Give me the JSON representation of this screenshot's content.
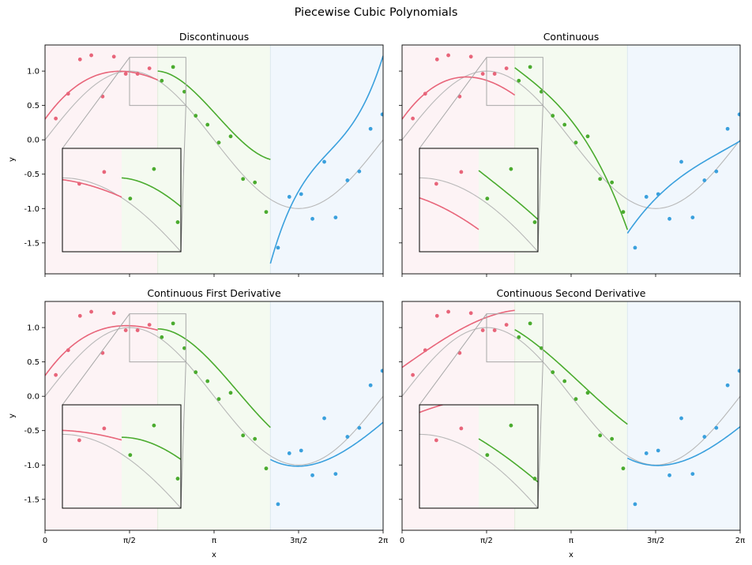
{
  "figure": {
    "title": "Piecewise Cubic Polynomials"
  },
  "colors": {
    "seg1": "#e8657a",
    "seg2": "#4aab2e",
    "seg3": "#3aa0dd",
    "truth": "#b8b8b8",
    "band1": "#fdf3f5",
    "band2": "#f4faf0",
    "band3": "#f1f7fd"
  },
  "axes": {
    "xlabel": "x",
    "ylabel": "y",
    "xlim": [
      0,
      6.2832
    ],
    "ylim": [
      -1.95,
      1.38
    ],
    "xticks": [
      0,
      1.5708,
      3.1416,
      4.7124,
      6.2832
    ],
    "yticks": [
      -1.5,
      -1.0,
      -0.5,
      0.0,
      0.5,
      1.0
    ],
    "knots": [
      2.0944,
      4.1888
    ],
    "inset_region": {
      "x": [
        1.5708,
        2.618
      ],
      "y": [
        0.5,
        1.2
      ]
    }
  },
  "chart_data": [
    {
      "type": "line",
      "title": "Discontinuous",
      "points": {
        "seg1": [
          [
            0.2,
            0.31
          ],
          [
            0.43,
            0.67
          ],
          [
            0.65,
            1.17
          ],
          [
            0.86,
            1.23
          ],
          [
            1.07,
            0.63
          ],
          [
            1.28,
            1.21
          ],
          [
            1.5,
            0.96
          ],
          [
            1.72,
            0.96
          ],
          [
            1.94,
            1.04
          ]
        ],
        "seg2": [
          [
            2.17,
            0.86
          ],
          [
            2.38,
            1.06
          ],
          [
            2.59,
            0.7
          ],
          [
            2.8,
            0.35
          ],
          [
            3.02,
            0.22
          ],
          [
            3.23,
            -0.04
          ],
          [
            3.45,
            0.05
          ],
          [
            3.68,
            -0.57
          ],
          [
            3.9,
            -0.62
          ],
          [
            4.11,
            -1.05
          ]
        ],
        "seg3": [
          [
            4.33,
            -1.57
          ],
          [
            4.54,
            -0.83
          ],
          [
            4.76,
            -0.79
          ],
          [
            4.97,
            -1.15
          ],
          [
            5.19,
            -0.32
          ],
          [
            5.4,
            -1.13
          ],
          [
            5.62,
            -0.59
          ],
          [
            5.84,
            -0.46
          ],
          [
            6.05,
            0.16
          ],
          [
            6.27,
            0.37
          ]
        ]
      },
      "fits": {
        "seg1": [
          0.3,
          1.1,
          -0.5,
          0.05
        ],
        "seg2": [
          1.0,
          -0.05,
          -0.73,
          0.22
        ],
        "seg3": [
          -1.8,
          2.8,
          -1.8,
          0.55
        ]
      }
    },
    {
      "type": "line",
      "title": "Continuous",
      "points": {
        "seg1": [
          [
            0.2,
            0.31
          ],
          [
            0.43,
            0.67
          ],
          [
            0.65,
            1.17
          ],
          [
            0.86,
            1.23
          ],
          [
            1.07,
            0.63
          ],
          [
            1.28,
            1.21
          ],
          [
            1.5,
            0.96
          ],
          [
            1.72,
            0.96
          ],
          [
            1.94,
            1.04
          ]
        ],
        "seg2": [
          [
            2.17,
            0.86
          ],
          [
            2.38,
            1.06
          ],
          [
            2.59,
            0.7
          ],
          [
            2.8,
            0.35
          ],
          [
            3.02,
            0.22
          ],
          [
            3.23,
            -0.04
          ],
          [
            3.45,
            0.05
          ],
          [
            3.68,
            -0.57
          ],
          [
            3.9,
            -0.62
          ],
          [
            4.11,
            -1.05
          ]
        ],
        "seg3": [
          [
            4.33,
            -1.57
          ],
          [
            4.54,
            -0.83
          ],
          [
            4.76,
            -0.79
          ],
          [
            4.97,
            -1.15
          ],
          [
            5.19,
            -0.32
          ],
          [
            5.4,
            -1.13
          ],
          [
            5.62,
            -0.59
          ],
          [
            5.84,
            -0.46
          ],
          [
            6.05,
            0.16
          ],
          [
            6.27,
            0.37
          ]
        ]
      },
      "fits": {
        "seg1": [
          0.3,
          1.1,
          -0.55,
          0.05
        ],
        "seg2": [
          1.05,
          -0.6,
          0.0,
          -0.12
        ],
        "seg3": [
          -1.36,
          1.15,
          -0.4,
          0.075
        ]
      }
    },
    {
      "type": "line",
      "title": "Continuous First Derivative",
      "points": {
        "seg1": [
          [
            0.2,
            0.31
          ],
          [
            0.43,
            0.67
          ],
          [
            0.65,
            1.17
          ],
          [
            0.86,
            1.23
          ],
          [
            1.07,
            0.63
          ],
          [
            1.28,
            1.21
          ],
          [
            1.5,
            0.96
          ],
          [
            1.72,
            0.96
          ],
          [
            1.94,
            1.04
          ]
        ],
        "seg2": [
          [
            2.17,
            0.86
          ],
          [
            2.38,
            1.06
          ],
          [
            2.59,
            0.7
          ],
          [
            2.8,
            0.35
          ],
          [
            3.02,
            0.22
          ],
          [
            3.23,
            -0.04
          ],
          [
            3.45,
            0.05
          ],
          [
            3.68,
            -0.57
          ],
          [
            3.9,
            -0.62
          ],
          [
            4.11,
            -1.05
          ]
        ],
        "seg3": [
          [
            4.33,
            -1.57
          ],
          [
            4.54,
            -0.83
          ],
          [
            4.76,
            -0.79
          ],
          [
            4.97,
            -1.15
          ],
          [
            5.19,
            -0.32
          ],
          [
            5.4,
            -1.13
          ],
          [
            5.62,
            -0.59
          ],
          [
            5.84,
            -0.46
          ],
          [
            6.05,
            0.16
          ],
          [
            6.27,
            0.37
          ]
        ]
      },
      "fits": {
        "seg1": [
          0.3,
          1.1,
          -0.5,
          0.06
        ],
        "seg2": [
          0.98,
          0.0,
          -0.62,
          0.14
        ],
        "seg3": [
          -0.92,
          -0.4,
          0.44,
          -0.06
        ]
      }
    },
    {
      "type": "line",
      "title": "Continuous Second Derivative",
      "points": {
        "seg1": [
          [
            0.2,
            0.31
          ],
          [
            0.43,
            0.67
          ],
          [
            0.65,
            1.17
          ],
          [
            0.86,
            1.23
          ],
          [
            1.07,
            0.63
          ],
          [
            1.28,
            1.21
          ],
          [
            1.5,
            0.96
          ],
          [
            1.72,
            0.96
          ],
          [
            1.94,
            1.04
          ]
        ],
        "seg2": [
          [
            2.17,
            0.86
          ],
          [
            2.38,
            1.06
          ],
          [
            2.59,
            0.7
          ],
          [
            2.8,
            0.35
          ],
          [
            3.02,
            0.22
          ],
          [
            3.23,
            -0.04
          ],
          [
            3.45,
            0.05
          ],
          [
            3.68,
            -0.57
          ],
          [
            3.9,
            -0.62
          ],
          [
            4.11,
            -1.05
          ]
        ],
        "seg3": [
          [
            4.33,
            -1.57
          ],
          [
            4.54,
            -0.83
          ],
          [
            4.76,
            -0.79
          ],
          [
            4.97,
            -1.15
          ],
          [
            5.19,
            -0.32
          ],
          [
            5.4,
            -1.13
          ],
          [
            5.62,
            -0.59
          ],
          [
            5.84,
            -0.46
          ],
          [
            6.05,
            0.16
          ],
          [
            6.27,
            0.37
          ]
        ]
      },
      "fits": {
        "seg1": [
          0.42,
          0.55,
          0.0,
          -0.035
        ],
        "seg2": [
          0.97,
          -0.46,
          -0.22,
          0.06
        ],
        "seg3": [
          -0.9,
          -0.4,
          0.4,
          -0.05
        ]
      }
    }
  ]
}
